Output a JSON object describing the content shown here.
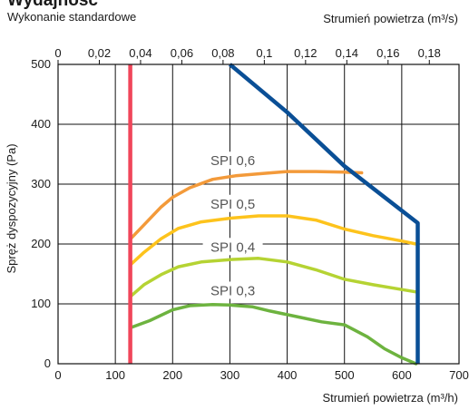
{
  "chart_data": {
    "type": "line",
    "title": "Wydajność",
    "subtitle": "Wykonanie standardowe",
    "xlabel": "Strumień powietrza (m³/h)",
    "x2label": "Strumień powietrza (m³/s)",
    "ylabel": "Spręż dyspozycyjny (Pa)",
    "xlim": [
      0,
      700
    ],
    "ylim": [
      0,
      500
    ],
    "x2lim": [
      0,
      0.1944
    ],
    "x_ticks": [
      0,
      100,
      200,
      300,
      400,
      500,
      600,
      700
    ],
    "x_tick_labels": [
      "0",
      "100",
      "200",
      "300",
      "400",
      "500",
      "600",
      "700"
    ],
    "y_ticks": [
      0,
      100,
      200,
      300,
      400,
      500
    ],
    "y_tick_labels": [
      "0",
      "100",
      "200",
      "300",
      "400",
      "500"
    ],
    "x2_ticks": [
      0,
      0.02,
      0.04,
      0.06,
      0.08,
      0.1,
      0.12,
      0.14,
      0.16,
      0.18
    ],
    "x2_tick_labels": [
      "0",
      "0,02",
      "0,04",
      "0,06",
      "0,08",
      "0,1",
      "0,12",
      "0,14",
      "0,16",
      "0,18"
    ],
    "grid": true,
    "series": [
      {
        "name": "SPI 0,6",
        "color": "#f39a3a",
        "label_at": [
          305,
          336
        ],
        "points": [
          [
            126,
            208
          ],
          [
            150,
            232
          ],
          [
            180,
            262
          ],
          [
            200,
            278
          ],
          [
            230,
            294
          ],
          [
            270,
            308
          ],
          [
            310,
            314
          ],
          [
            360,
            318
          ],
          [
            400,
            321
          ],
          [
            450,
            321
          ],
          [
            500,
            320
          ],
          [
            530,
            319
          ]
        ]
      },
      {
        "name": "SPI 0,5",
        "color": "#fdc31c",
        "label_at": [
          305,
          264
        ],
        "points": [
          [
            126,
            165
          ],
          [
            150,
            186
          ],
          [
            180,
            209
          ],
          [
            210,
            226
          ],
          [
            250,
            237
          ],
          [
            300,
            243
          ],
          [
            350,
            247
          ],
          [
            400,
            247
          ],
          [
            450,
            240
          ],
          [
            500,
            225
          ],
          [
            550,
            214
          ],
          [
            600,
            205
          ],
          [
            625,
            200
          ]
        ]
      },
      {
        "name": "SPI 0,4",
        "color": "#b5d333",
        "label_at": [
          305,
          192
        ],
        "points": [
          [
            126,
            112
          ],
          [
            150,
            132
          ],
          [
            180,
            149
          ],
          [
            210,
            162
          ],
          [
            250,
            170
          ],
          [
            300,
            174
          ],
          [
            350,
            176
          ],
          [
            400,
            170
          ],
          [
            450,
            157
          ],
          [
            500,
            141
          ],
          [
            550,
            132
          ],
          [
            600,
            124
          ],
          [
            625,
            120
          ]
        ]
      },
      {
        "name": "SPI 0,3",
        "color": "#6db33f",
        "label_at": [
          305,
          119
        ],
        "points": [
          [
            126,
            60
          ],
          [
            160,
            72
          ],
          [
            200,
            90
          ],
          [
            230,
            97
          ],
          [
            270,
            99
          ],
          [
            300,
            98
          ],
          [
            340,
            95
          ],
          [
            370,
            88
          ],
          [
            420,
            78
          ],
          [
            460,
            70
          ],
          [
            500,
            65
          ],
          [
            540,
            45
          ],
          [
            570,
            25
          ],
          [
            600,
            10
          ],
          [
            625,
            0
          ]
        ]
      },
      {
        "name": "",
        "color": "#f0465a",
        "points": [
          [
            126,
            0
          ],
          [
            126,
            500
          ]
        ]
      },
      {
        "name": "",
        "color": "#0a4f96",
        "points": [
          [
            300,
            500
          ],
          [
            400,
            420
          ],
          [
            500,
            330
          ],
          [
            628,
            235
          ],
          [
            628,
            0
          ]
        ]
      }
    ]
  }
}
